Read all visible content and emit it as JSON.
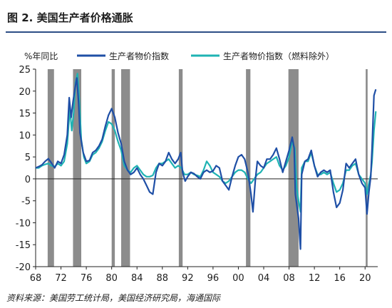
{
  "figure": {
    "title": "图 2. 美国生产者价格通胀",
    "source": "资料来源：美国劳工统计局，美国经济研究局，海通国际"
  },
  "chart_data": {
    "type": "line",
    "ylabel": "%年同比",
    "xlabel": "",
    "ylim": [
      -20,
      25
    ],
    "xlim": [
      1968,
      2022
    ],
    "yticks": [
      25,
      20,
      15,
      10,
      5,
      0,
      -5,
      -10,
      -15,
      -20
    ],
    "xticks": [
      {
        "value": 1968,
        "label": "68"
      },
      {
        "value": 1972,
        "label": "72"
      },
      {
        "value": 1976,
        "label": "76"
      },
      {
        "value": 1980,
        "label": "80"
      },
      {
        "value": 1984,
        "label": "84"
      },
      {
        "value": 1988,
        "label": "88"
      },
      {
        "value": 1992,
        "label": "92"
      },
      {
        "value": 1996,
        "label": "96"
      },
      {
        "value": 2000,
        "label": "00"
      },
      {
        "value": 2004,
        "label": "04"
      },
      {
        "value": 2008,
        "label": "08"
      },
      {
        "value": 2012,
        "label": "12"
      },
      {
        "value": 2016,
        "label": "16"
      },
      {
        "value": 2020,
        "label": "20"
      }
    ],
    "grid": false,
    "legend_position": "top",
    "recessions": [
      [
        1969.9,
        1970.9
      ],
      [
        1973.9,
        1975.2
      ],
      [
        1980.0,
        1980.5
      ],
      [
        1981.5,
        1982.9
      ],
      [
        1990.6,
        1991.2
      ],
      [
        2001.2,
        2001.9
      ],
      [
        2007.9,
        2009.5
      ],
      [
        2020.1,
        2020.4
      ]
    ],
    "series": [
      {
        "name": "生产者物价指数",
        "color": "#1f4fa6",
        "points": [
          [
            1968,
            2.5
          ],
          [
            1968.5,
            2.8
          ],
          [
            1969,
            3.2
          ],
          [
            1969.5,
            4.0
          ],
          [
            1970,
            4.6
          ],
          [
            1970.5,
            3.6
          ],
          [
            1971,
            2.5
          ],
          [
            1971.5,
            4.0
          ],
          [
            1972,
            3.5
          ],
          [
            1972.5,
            5.5
          ],
          [
            1973,
            10.0
          ],
          [
            1973.3,
            18.5
          ],
          [
            1973.6,
            14.0
          ],
          [
            1973.9,
            17.5
          ],
          [
            1974.2,
            20.5
          ],
          [
            1974.5,
            23.0
          ],
          [
            1974.8,
            17.0
          ],
          [
            1975,
            10.5
          ],
          [
            1975.5,
            6.0
          ],
          [
            1976,
            4.0
          ],
          [
            1976.5,
            4.2
          ],
          [
            1977,
            6.0
          ],
          [
            1977.5,
            6.5
          ],
          [
            1978,
            7.5
          ],
          [
            1978.5,
            9.0
          ],
          [
            1979,
            12.0
          ],
          [
            1979.5,
            14.5
          ],
          [
            1980,
            16.0
          ],
          [
            1980.5,
            14.0
          ],
          [
            1981,
            10.5
          ],
          [
            1981.5,
            8.0
          ],
          [
            1982,
            4.0
          ],
          [
            1982.5,
            2.0
          ],
          [
            1983,
            1.0
          ],
          [
            1983.5,
            1.5
          ],
          [
            1984,
            2.5
          ],
          [
            1984.5,
            1.0
          ],
          [
            1985,
            0.0
          ],
          [
            1985.5,
            -1.5
          ],
          [
            1986,
            -3.0
          ],
          [
            1986.5,
            -3.5
          ],
          [
            1987,
            1.5
          ],
          [
            1987.5,
            3.5
          ],
          [
            1988,
            3.0
          ],
          [
            1988.5,
            4.0
          ],
          [
            1989,
            6.0
          ],
          [
            1989.5,
            4.5
          ],
          [
            1990,
            3.5
          ],
          [
            1990.5,
            4.5
          ],
          [
            1990.9,
            6.0
          ],
          [
            1991.2,
            1.5
          ],
          [
            1991.6,
            -0.5
          ],
          [
            1992,
            0.5
          ],
          [
            1992.5,
            1.5
          ],
          [
            1993,
            1.2
          ],
          [
            1993.5,
            0.5
          ],
          [
            1994,
            0.0
          ],
          [
            1994.5,
            1.5
          ],
          [
            1995,
            2.0
          ],
          [
            1995.5,
            1.5
          ],
          [
            1996,
            1.8
          ],
          [
            1996.5,
            3.0
          ],
          [
            1997,
            2.5
          ],
          [
            1997.5,
            -0.5
          ],
          [
            1998,
            -1.5
          ],
          [
            1998.5,
            -2.5
          ],
          [
            1999,
            0.5
          ],
          [
            1999.5,
            3.0
          ],
          [
            2000,
            5.0
          ],
          [
            2000.5,
            5.5
          ],
          [
            2001,
            4.5
          ],
          [
            2001.5,
            1.5
          ],
          [
            2002,
            -3.5
          ],
          [
            2002.3,
            -7.5
          ],
          [
            2002.7,
            0.0
          ],
          [
            2003,
            4.0
          ],
          [
            2003.5,
            3.0
          ],
          [
            2004,
            2.5
          ],
          [
            2004.5,
            4.5
          ],
          [
            2005,
            4.5
          ],
          [
            2005.5,
            5.5
          ],
          [
            2006,
            7.0
          ],
          [
            2006.5,
            4.5
          ],
          [
            2007,
            1.5
          ],
          [
            2007.5,
            4.0
          ],
          [
            2008,
            6.5
          ],
          [
            2008.5,
            9.5
          ],
          [
            2008.8,
            7.0
          ],
          [
            2009,
            -3.5
          ],
          [
            2009.5,
            -9.0
          ],
          [
            2009.8,
            -16.0
          ],
          [
            2010,
            1.0
          ],
          [
            2010.5,
            4.0
          ],
          [
            2011,
            4.5
          ],
          [
            2011.5,
            6.5
          ],
          [
            2012,
            3.0
          ],
          [
            2012.5,
            0.5
          ],
          [
            2013,
            1.5
          ],
          [
            2013.5,
            2.0
          ],
          [
            2014,
            1.5
          ],
          [
            2014.5,
            2.0
          ],
          [
            2015,
            -3.0
          ],
          [
            2015.5,
            -6.5
          ],
          [
            2016,
            -5.5
          ],
          [
            2016.5,
            -2.5
          ],
          [
            2017,
            3.5
          ],
          [
            2017.5,
            2.5
          ],
          [
            2018,
            3.5
          ],
          [
            2018.5,
            4.5
          ],
          [
            2019,
            1.0
          ],
          [
            2019.5,
            -1.0
          ],
          [
            2020,
            -2.0
          ],
          [
            2020.3,
            -8.0
          ],
          [
            2020.6,
            -3.0
          ],
          [
            2020.9,
            0.5
          ],
          [
            2021.1,
            7.0
          ],
          [
            2021.4,
            19.0
          ],
          [
            2021.7,
            20.4
          ]
        ]
      },
      {
        "name": "生产者物价指数（燃料除外）",
        "color": "#1fb3b3",
        "points": [
          [
            1968,
            2.5
          ],
          [
            1968.5,
            2.5
          ],
          [
            1969,
            3.0
          ],
          [
            1969.5,
            3.3
          ],
          [
            1970,
            3.5
          ],
          [
            1970.5,
            3.0
          ],
          [
            1971,
            2.8
          ],
          [
            1971.5,
            3.5
          ],
          [
            1972,
            3.0
          ],
          [
            1972.5,
            4.0
          ],
          [
            1973,
            8.0
          ],
          [
            1973.4,
            16.0
          ],
          [
            1973.7,
            11.0
          ],
          [
            1974,
            15.0
          ],
          [
            1974.3,
            22.0
          ],
          [
            1974.6,
            24.0
          ],
          [
            1974.9,
            18.0
          ],
          [
            1975.2,
            9.0
          ],
          [
            1975.6,
            5.0
          ],
          [
            1976,
            3.5
          ],
          [
            1976.5,
            4.0
          ],
          [
            1977,
            5.5
          ],
          [
            1977.5,
            6.0
          ],
          [
            1978,
            7.0
          ],
          [
            1978.5,
            8.5
          ],
          [
            1979,
            11.0
          ],
          [
            1979.5,
            13.0
          ],
          [
            1980,
            12.5
          ],
          [
            1980.5,
            11.0
          ],
          [
            1981,
            8.5
          ],
          [
            1981.5,
            6.5
          ],
          [
            1982,
            3.0
          ],
          [
            1982.5,
            2.0
          ],
          [
            1983,
            1.5
          ],
          [
            1983.5,
            2.5
          ],
          [
            1984,
            3.0
          ],
          [
            1984.5,
            2.0
          ],
          [
            1985,
            1.0
          ],
          [
            1985.5,
            0.5
          ],
          [
            1986,
            0.5
          ],
          [
            1986.5,
            0.8
          ],
          [
            1987,
            2.5
          ],
          [
            1987.5,
            3.5
          ],
          [
            1988,
            3.5
          ],
          [
            1988.5,
            4.0
          ],
          [
            1989,
            4.5
          ],
          [
            1989.5,
            3.5
          ],
          [
            1990,
            2.5
          ],
          [
            1990.5,
            3.0
          ],
          [
            1991,
            2.5
          ],
          [
            1991.5,
            1.0
          ],
          [
            1992,
            1.0
          ],
          [
            1992.5,
            1.5
          ],
          [
            1993,
            1.0
          ],
          [
            1993.5,
            0.8
          ],
          [
            1994,
            0.5
          ],
          [
            1994.5,
            2.0
          ],
          [
            1995,
            4.0
          ],
          [
            1995.5,
            3.0
          ],
          [
            1996,
            1.5
          ],
          [
            1996.5,
            1.0
          ],
          [
            1997,
            0.5
          ],
          [
            1997.5,
            -0.5
          ],
          [
            1998,
            -1.0
          ],
          [
            1998.5,
            -0.5
          ],
          [
            1999,
            0.5
          ],
          [
            1999.5,
            1.5
          ],
          [
            2000,
            2.0
          ],
          [
            2000.5,
            2.0
          ],
          [
            2001,
            1.5
          ],
          [
            2001.5,
            0.0
          ],
          [
            2002,
            -1.0
          ],
          [
            2002.5,
            0.0
          ],
          [
            2003,
            1.0
          ],
          [
            2003.5,
            1.5
          ],
          [
            2004,
            2.5
          ],
          [
            2004.5,
            3.5
          ],
          [
            2005,
            4.0
          ],
          [
            2005.5,
            4.5
          ],
          [
            2006,
            5.0
          ],
          [
            2006.5,
            3.0
          ],
          [
            2007,
            2.0
          ],
          [
            2007.5,
            3.0
          ],
          [
            2008,
            5.0
          ],
          [
            2008.5,
            8.5
          ],
          [
            2008.9,
            7.0
          ],
          [
            2009.2,
            -2.0
          ],
          [
            2009.5,
            -5.0
          ],
          [
            2009.8,
            -7.5
          ],
          [
            2010,
            2.5
          ],
          [
            2010.5,
            4.0
          ],
          [
            2011,
            4.0
          ],
          [
            2011.5,
            6.0
          ],
          [
            2012,
            3.0
          ],
          [
            2012.5,
            1.0
          ],
          [
            2013,
            1.0
          ],
          [
            2013.5,
            1.5
          ],
          [
            2014,
            1.0
          ],
          [
            2014.5,
            1.5
          ],
          [
            2015,
            -1.0
          ],
          [
            2015.5,
            -3.0
          ],
          [
            2016,
            -2.5
          ],
          [
            2016.5,
            -1.0
          ],
          [
            2017,
            2.0
          ],
          [
            2017.5,
            2.0
          ],
          [
            2018,
            3.0
          ],
          [
            2018.5,
            3.5
          ],
          [
            2019,
            1.0
          ],
          [
            2019.5,
            0.0
          ],
          [
            2020,
            -1.0
          ],
          [
            2020.3,
            -3.5
          ],
          [
            2020.6,
            -1.0
          ],
          [
            2020.9,
            1.0
          ],
          [
            2021.1,
            4.0
          ],
          [
            2021.4,
            11.0
          ],
          [
            2021.7,
            15.4
          ]
        ]
      }
    ]
  }
}
